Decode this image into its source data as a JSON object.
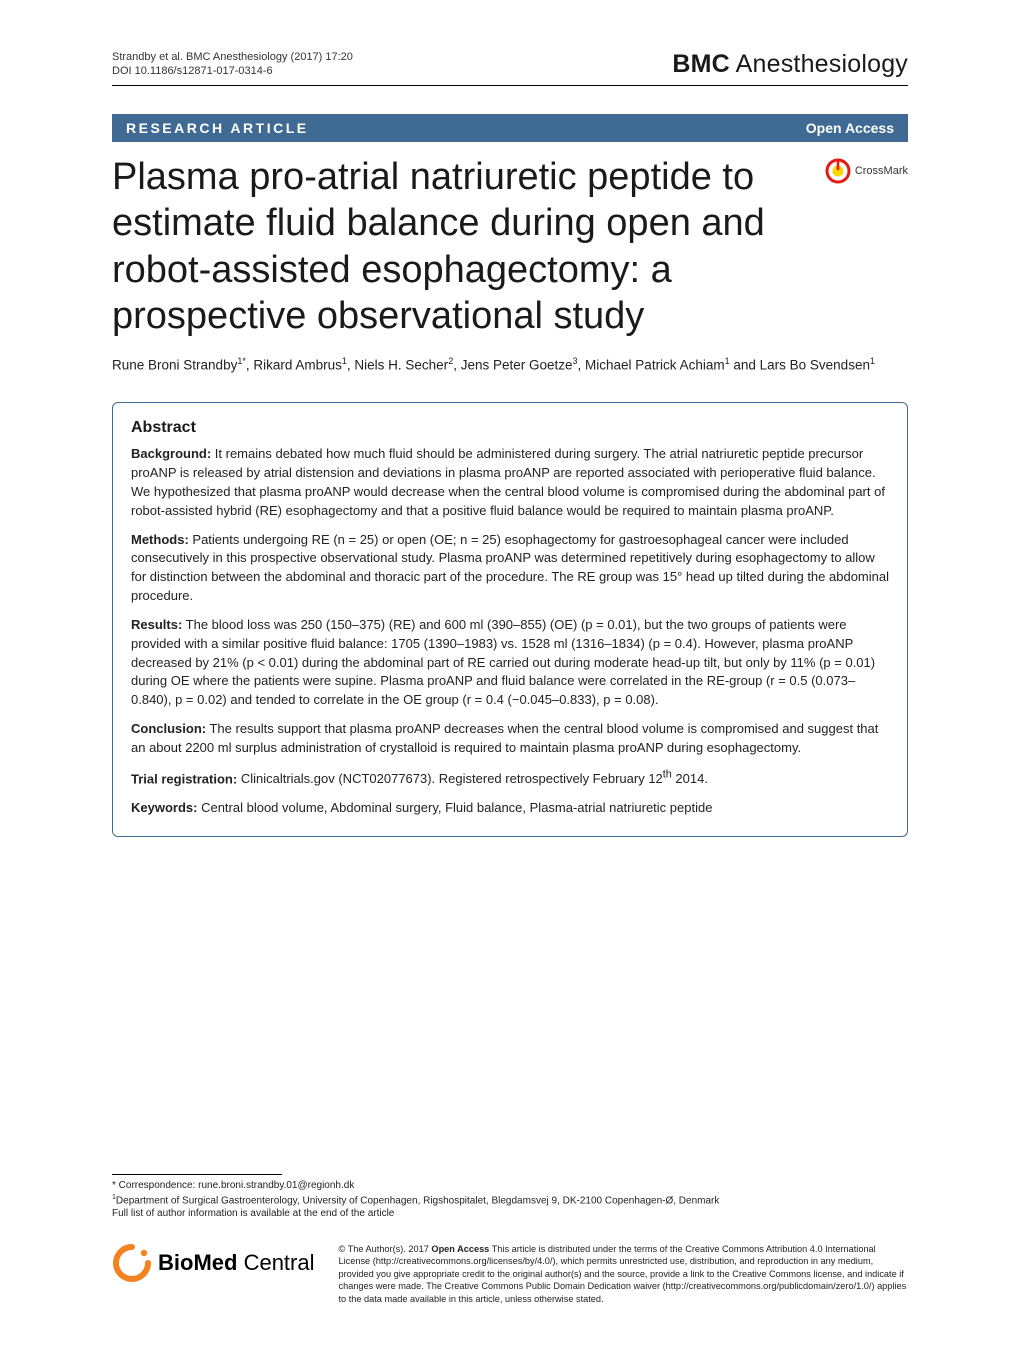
{
  "header": {
    "citation_line1": "Strandby et al. BMC Anesthesiology  (2017) 17:20",
    "citation_line2": "DOI 10.1186/s12871-017-0314-6",
    "journal_bold": "BMC",
    "journal_rest": " Anesthesiology"
  },
  "banner": {
    "left": "RESEARCH ARTICLE",
    "right": "Open Access",
    "bg_color": "#3f6a94",
    "text_color": "#ffffff"
  },
  "crossmark": {
    "label": "CrossMark",
    "ring_color": "#e41b13",
    "inner_color": "#ffd400"
  },
  "title": "Plasma pro-atrial natriuretic peptide to estimate fluid balance during open and robot-assisted esophagectomy: a prospective observational study",
  "authors_html": "Rune Broni Strandby<sup>1*</sup>, Rikard Ambrus<sup>1</sup>, Niels H. Secher<sup>2</sup>, Jens Peter Goetze<sup>3</sup>, Michael Patrick Achiam<sup>1</sup> and Lars Bo Svendsen<sup>1</sup>",
  "abstract": {
    "heading": "Abstract",
    "background": {
      "label": "Background:",
      "text": " It remains debated how much fluid should be administered during surgery. The atrial natriuretic peptide precursor proANP is released by atrial distension and deviations in plasma proANP are reported associated with perioperative fluid balance. We hypothesized that plasma proANP would decrease when the central blood volume is compromised during the abdominal part of robot-assisted hybrid (RE) esophagectomy and that a positive fluid balance would be required to maintain plasma proANP."
    },
    "methods": {
      "label": "Methods:",
      "text": " Patients undergoing RE (n = 25) or open (OE; n = 25) esophagectomy for gastroesophageal cancer were included consecutively in this prospective observational study. Plasma proANP was determined repetitively during esophagectomy to allow for distinction between the abdominal and thoracic part of the procedure. The RE group was 15° head up tilted during the abdominal procedure."
    },
    "results": {
      "label": "Results:",
      "text": " The blood loss was 250 (150–375) (RE) and 600 ml (390–855) (OE) (p = 0.01), but the two groups of patients were provided with a similar positive fluid balance: 1705 (1390–1983) vs. 1528 ml (1316–1834) (p = 0.4). However, plasma proANP decreased by 21% (p < 0.01) during the abdominal part of RE carried out during moderate head-up tilt, but only by 11% (p = 0.01) during OE where the patients were supine. Plasma proANP and fluid balance were correlated in the RE-group (r = 0.5 (0.073–0.840), p = 0.02) and tended to correlate in the OE group (r = 0.4 (−0.045–0.833), p = 0.08)."
    },
    "conclusion": {
      "label": "Conclusion:",
      "text": " The results support that plasma proANP decreases when the central blood volume is compromised and suggest that an about 2200 ml surplus administration of crystalloid is required to maintain plasma proANP during esophagectomy."
    },
    "trial": {
      "label": "Trial registration:",
      "text_html": " Clinicaltrials.gov (NCT02077673). Registered retrospectively February 12<sup>th</sup> 2014."
    },
    "keywords": {
      "label": "Keywords:",
      "text": " Central blood volume, Abdominal surgery, Fluid balance, Plasma-atrial natriuretic peptide"
    }
  },
  "footnote": {
    "line1": "* Correspondence: rune.broni.strandby.01@regionh.dk",
    "line2_html": "<sup>1</sup>Department of Surgical Gastroenterology, University of Copenhagen, Rigshospitalet, Blegdamsvej 9, DK-2100 Copenhagen-Ø, Denmark",
    "line3": "Full list of author information is available at the end of the article"
  },
  "license": {
    "logo_bold": "BioMed",
    "logo_rest": " Central",
    "ring_color": "#f58220",
    "text_html": "© The Author(s). 2017 <span class=\"oa\">Open Access</span> This article is distributed under the terms of the Creative Commons Attribution 4.0 International License (http://creativecommons.org/licenses/by/4.0/), which permits unrestricted use, distribution, and reproduction in any medium, provided you give appropriate credit to the original author(s) and the source, provide a link to the Creative Commons license, and indicate if changes were made. The Creative Commons Public Domain Dedication waiver (http://creativecommons.org/publicdomain/zero/1.0/) applies to the data made available in this article, unless otherwise stated."
  }
}
